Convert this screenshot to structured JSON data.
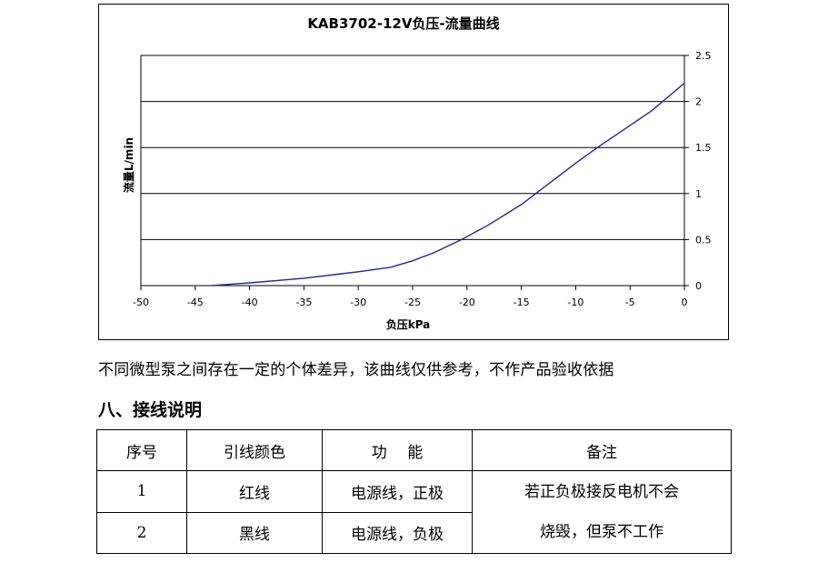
{
  "chart_data": {
    "type": "line",
    "title": "KAB3702-12V负压-流量曲线",
    "xlabel": "负压kPa",
    "ylabel": "流量L/min",
    "xlim": [
      -50,
      0
    ],
    "ylim": [
      0,
      2.5
    ],
    "x_ticks": [
      "-50",
      "-45",
      "-40",
      "-35",
      "-30",
      "-25",
      "-20",
      "-15",
      "-10",
      "-5",
      "0"
    ],
    "y_ticks": [
      "0",
      "0.5",
      "1",
      "1.5",
      "2",
      "2.5"
    ],
    "y_axis_side": "right",
    "x_axis_position": "bottom",
    "grid": "horizontal",
    "line_color": "#1f2a8c",
    "series": [
      {
        "x": [
          -43.5,
          -40,
          -35,
          -30,
          -27,
          -25,
          -23,
          -20.5,
          -18,
          -15,
          -12,
          -10,
          -8,
          -5,
          -3,
          0
        ],
        "y": [
          0.0,
          0.03,
          0.08,
          0.15,
          0.2,
          0.27,
          0.36,
          0.5,
          0.66,
          0.88,
          1.15,
          1.33,
          1.5,
          1.74,
          1.9,
          2.2
        ]
      }
    ]
  },
  "note": "不同微型泵之间存在一定的个体差异，该曲线仅供参考，不作产品验收依据",
  "section_heading": "八、接线说明",
  "wiring_table": {
    "headers": [
      "序号",
      "引线颜色",
      "功　 能",
      "备注"
    ],
    "rows": [
      {
        "no": "1",
        "color": "红线",
        "function": "电源线，正极"
      },
      {
        "no": "2",
        "color": "黑线",
        "function": "电源线，负极"
      }
    ],
    "remark_line1": "若正负极接反电机不会",
    "remark_line2": "烧毁，但泵不工作"
  }
}
